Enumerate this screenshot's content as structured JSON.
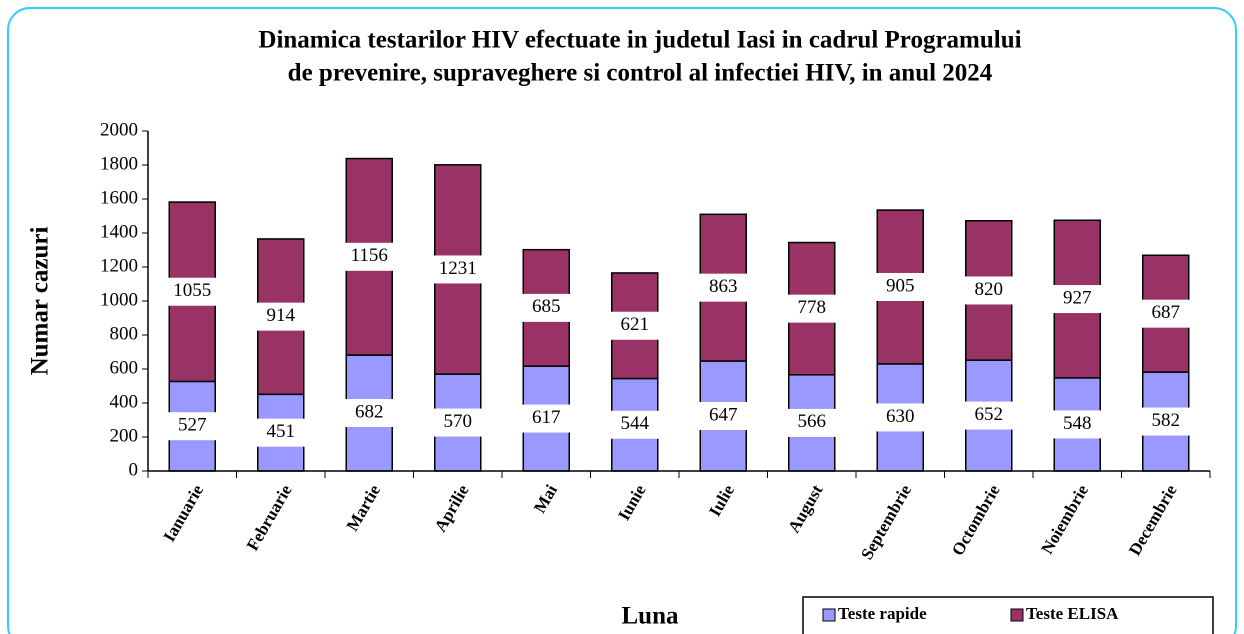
{
  "chart_data": {
    "type": "stacked_bar",
    "title": [
      "Dinamica testarilor HIV efectuate in judetul Iasi in cadrul Programului",
      "de prevenire, supraveghere si control al infectiei HIV,  in anul 2024"
    ],
    "x_label": "Luna",
    "y_label": "Numar cazuri",
    "categories": [
      "Ianuarie",
      "Februarie",
      "Martie",
      "Aprilie",
      "Mai",
      "Iunie",
      "Iulie",
      "August",
      "Septembrie",
      "Octombrie",
      "Noiembrie",
      "Decembrie"
    ],
    "series": [
      {
        "name": "Teste rapide",
        "color": "#9999ff",
        "values": [
          527,
          451,
          682,
          570,
          617,
          544,
          647,
          566,
          630,
          652,
          548,
          582
        ]
      },
      {
        "name": "Teste ELISA",
        "color": "#993366",
        "values": [
          1055,
          914,
          1156,
          1231,
          685,
          621,
          863,
          778,
          905,
          820,
          927,
          687
        ]
      }
    ],
    "ylim": [
      0,
      2000
    ],
    "yticks": [
      0,
      200,
      400,
      600,
      800,
      1000,
      1200,
      1400,
      1600,
      1800,
      2000
    ],
    "legend": "bottom-right",
    "grid": false
  }
}
